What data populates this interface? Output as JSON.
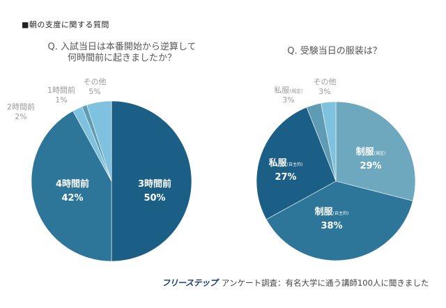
{
  "section_title": "■朝の支度に関する質問",
  "footer": {
    "logo": "フリーステップ",
    "text": "アンケート調査：有名大学に通う講師100人に聞きました"
  },
  "chart_data": [
    {
      "type": "pie",
      "title": "Q. 入試当日は本番開始から逆算して何時間前に起きましたか？",
      "title_lines": [
        "Q. 入試当日は本番開始から逆算して",
        "何時間前に起きましたか？"
      ],
      "start": "top",
      "direction": "clockwise",
      "slices": [
        {
          "label": "3時間前",
          "value": 50,
          "display": "50%",
          "color": "#1b5e86",
          "label_position": "inside"
        },
        {
          "label": "4時間前",
          "value": 42,
          "display": "42%",
          "color": "#2d7699",
          "label_position": "inside"
        },
        {
          "label": "2時間前",
          "value": 2,
          "display": "2%",
          "color": "#7fc2e0",
          "label_position": "outside"
        },
        {
          "label": "1時間前",
          "value": 1,
          "display": "1%",
          "color": "#5f9cb4",
          "label_position": "outside"
        },
        {
          "label": "その他",
          "value": 5,
          "display": "5%",
          "color": "#7fc2e0",
          "label_position": "outside"
        }
      ]
    },
    {
      "type": "pie",
      "title": "Q. 受験当日の服装は？",
      "title_lines": [
        "Q. 受験当日の服装は？"
      ],
      "start": "top",
      "direction": "clockwise",
      "slices": [
        {
          "label": "制服",
          "sublabel": "(規定)",
          "value": 29,
          "display": "29%",
          "color": "#6da8bf",
          "label_position": "inside"
        },
        {
          "label": "制服",
          "sublabel": "(自主的)",
          "value": 38,
          "display": "38%",
          "color": "#2d7699",
          "label_position": "inside"
        },
        {
          "label": "私服",
          "sublabel": "(自主的)",
          "value": 27,
          "display": "27%",
          "color": "#1b5e86",
          "label_position": "inside"
        },
        {
          "label": "私服",
          "sublabel": "(規定)",
          "value": 3,
          "display": "3%",
          "color": "#5f9cb4",
          "label_position": "outside"
        },
        {
          "label": "その他",
          "sublabel": "",
          "value": 3,
          "display": "3%",
          "color": "#7fc2e0",
          "label_position": "outside"
        }
      ]
    }
  ]
}
